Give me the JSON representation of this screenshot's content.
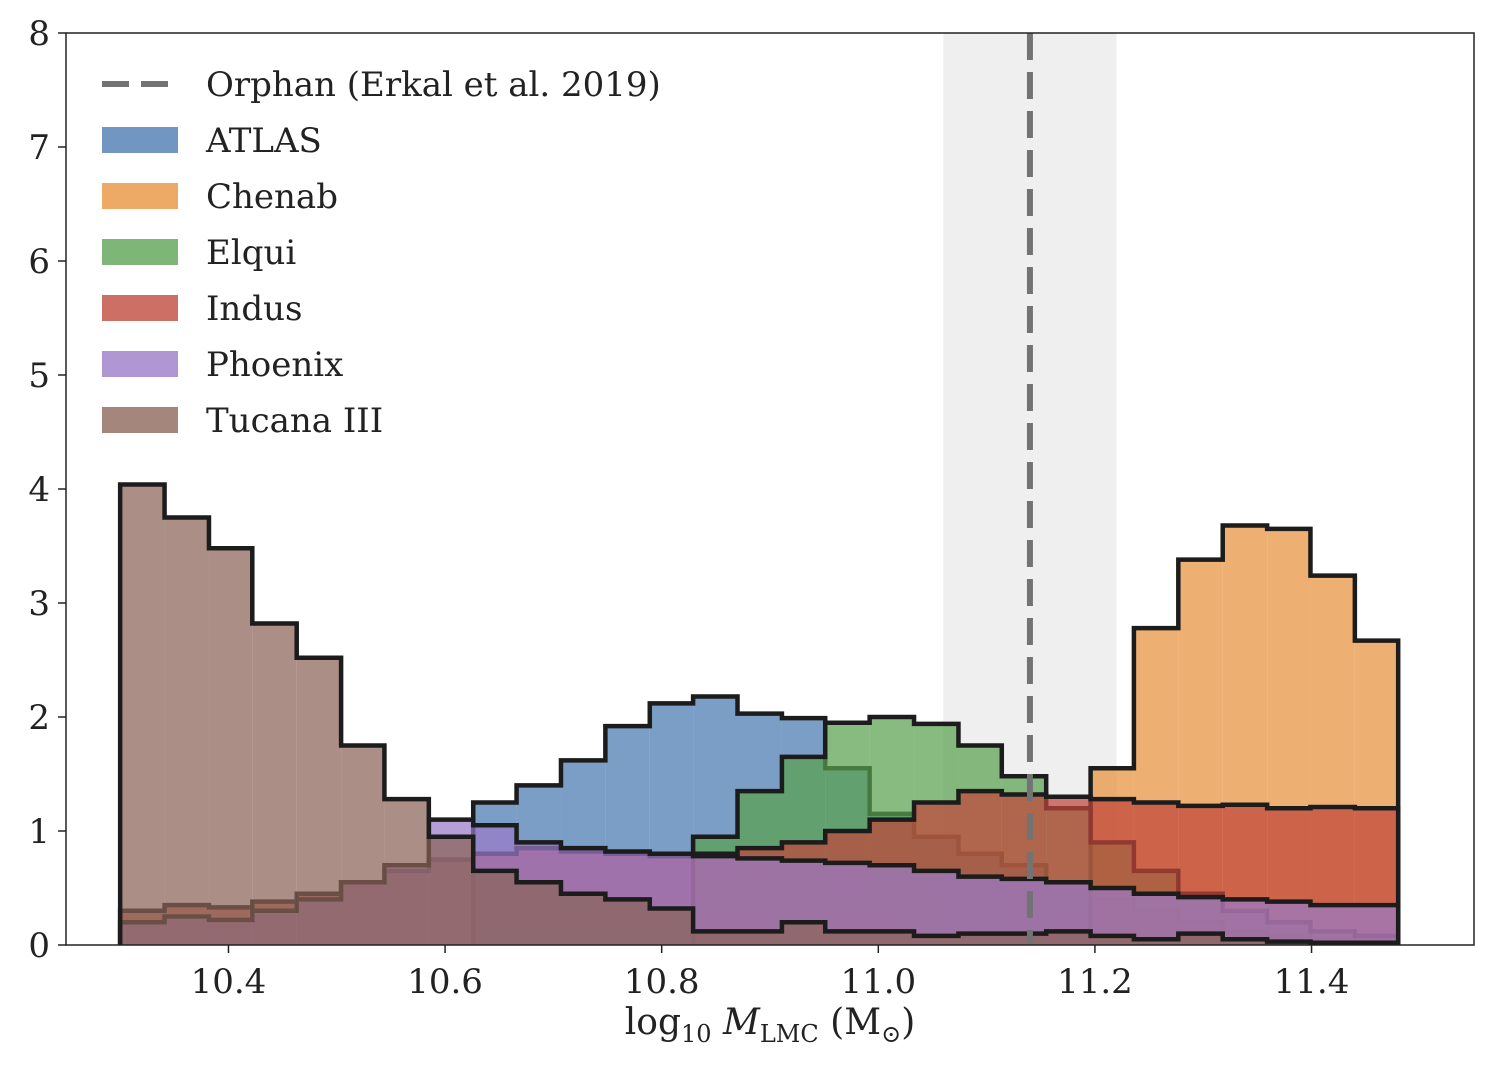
{
  "chart_data": {
    "type": "histogram",
    "xlabel": {
      "prefix": "log",
      "sub": "10",
      "mid": " M",
      "msub": "LMC",
      "unit": " (M",
      "unitsub": "⊙",
      "close": ")"
    },
    "ylabel": "",
    "xlim": [
      10.25,
      11.55
    ],
    "ylim": [
      0,
      8
    ],
    "xticks": [
      10.4,
      10.6,
      10.8,
      11.0,
      11.2,
      11.4
    ],
    "xtick_labels": [
      "10.4",
      "10.6",
      "10.8",
      "11.0",
      "11.2",
      "11.4"
    ],
    "yticks": [
      0,
      1,
      2,
      3,
      4,
      5,
      6,
      7,
      8
    ],
    "ytick_labels": [
      "0",
      "1",
      "2",
      "3",
      "4",
      "5",
      "6",
      "7",
      "8"
    ],
    "grid": false,
    "legend_position": "top-left",
    "bin_edges": [
      10.3,
      10.341,
      10.382,
      10.422,
      10.463,
      10.504,
      10.544,
      10.585,
      10.626,
      10.666,
      10.707,
      10.748,
      10.789,
      10.829,
      10.87,
      10.911,
      10.951,
      10.992,
      11.033,
      11.074,
      11.114,
      11.155,
      11.196,
      11.236,
      11.277,
      11.318,
      11.359,
      11.399,
      11.44,
      11.48
    ],
    "series": [
      {
        "name": "ATLAS",
        "color": "#4878b0",
        "values": [
          0,
          0,
          0,
          0,
          0,
          0,
          0,
          0,
          1.25,
          1.4,
          1.62,
          1.92,
          2.12,
          2.18,
          2.03,
          1.99,
          1.55,
          1.15,
          0.95,
          0.8,
          0.7,
          0.55,
          0.4,
          0.3,
          0.2,
          0.12,
          0.08,
          0.05,
          0.03
        ]
      },
      {
        "name": "Chenab",
        "color": "#e8923c",
        "values": [
          0,
          0,
          0,
          0,
          0,
          0,
          0,
          0,
          0,
          0,
          0,
          0,
          0,
          0,
          0,
          0,
          0,
          0,
          0,
          0,
          0,
          0,
          1.55,
          2.78,
          3.38,
          3.68,
          3.65,
          3.24,
          2.67
        ]
      },
      {
        "name": "Elqui",
        "color": "#59a14f",
        "values": [
          0,
          0,
          0,
          0,
          0,
          0,
          0,
          0,
          0,
          0,
          0,
          0,
          0,
          0.95,
          1.35,
          1.65,
          1.95,
          2.0,
          1.94,
          1.75,
          1.48,
          1.2,
          0.9,
          0.65,
          0.45,
          0.3,
          0.2,
          0.12,
          0.08
        ]
      },
      {
        "name": "Indus",
        "color": "#c0463a",
        "values": [
          0.3,
          0.35,
          0.33,
          0.38,
          0.45,
          0.55,
          0.65,
          0.75,
          0.8,
          0.85,
          0.82,
          0.8,
          0.78,
          0.8,
          0.85,
          0.9,
          1.0,
          1.1,
          1.25,
          1.35,
          1.32,
          1.3,
          1.28,
          1.25,
          1.22,
          1.23,
          1.2,
          1.21,
          1.2
        ]
      },
      {
        "name": "Phoenix",
        "color": "#9a7ac8",
        "values": [
          0.2,
          0.25,
          0.22,
          0.3,
          0.4,
          0.55,
          0.7,
          1.1,
          1.05,
          0.9,
          0.85,
          0.82,
          0.8,
          0.78,
          0.76,
          0.74,
          0.72,
          0.7,
          0.65,
          0.6,
          0.58,
          0.55,
          0.5,
          0.45,
          0.42,
          0.4,
          0.38,
          0.35,
          0.35
        ]
      },
      {
        "name": "Tucana III",
        "color": "#8b6458",
        "values": [
          4.04,
          3.75,
          3.48,
          2.82,
          2.52,
          1.75,
          1.28,
          0.95,
          0.65,
          0.55,
          0.45,
          0.4,
          0.32,
          0.12,
          0.12,
          0.2,
          0.12,
          0.12,
          0.08,
          0.1,
          0.1,
          0.12,
          0.08,
          0.05,
          0.1,
          0.05,
          0.03,
          0.02,
          0.02
        ]
      }
    ],
    "reference_line": {
      "name": "Orphan (Erkal et al. 2019)",
      "x": 11.14,
      "band": [
        11.06,
        11.22
      ],
      "color": "#737373",
      "band_color": "#efefef"
    }
  }
}
